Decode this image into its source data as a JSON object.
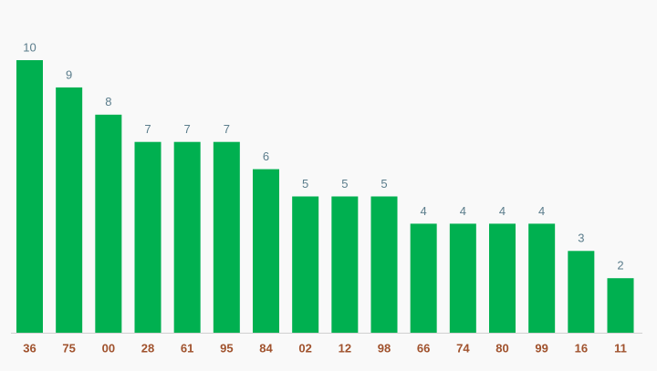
{
  "chart_data": {
    "type": "bar",
    "categories": [
      "36",
      "75",
      "00",
      "28",
      "61",
      "95",
      "84",
      "02",
      "12",
      "98",
      "66",
      "74",
      "80",
      "99",
      "16",
      "11"
    ],
    "values": [
      10,
      9,
      8,
      7,
      7,
      7,
      6,
      5,
      5,
      5,
      4,
      4,
      4,
      4,
      3,
      2
    ],
    "color": "#00b050"
  }
}
